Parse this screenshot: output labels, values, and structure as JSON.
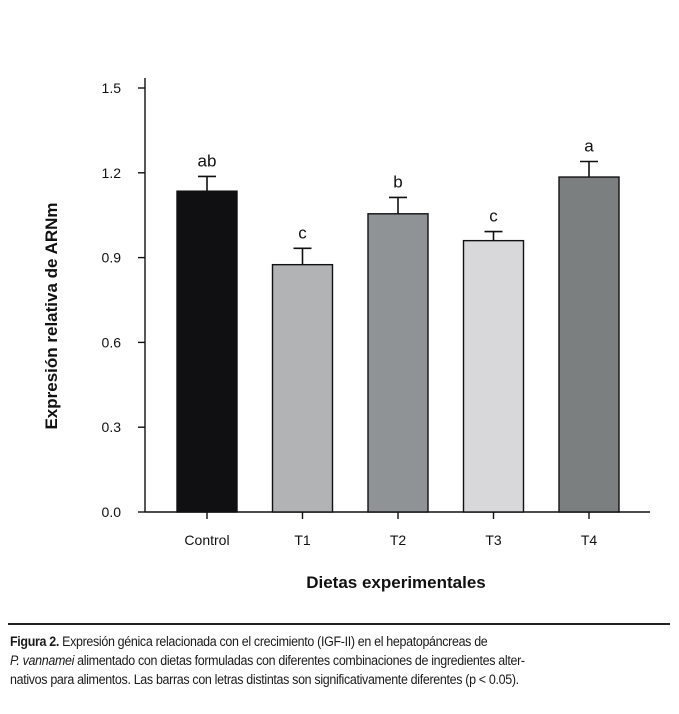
{
  "chart_data": {
    "type": "bar",
    "categories": [
      "Control",
      "T1",
      "T2",
      "T3",
      "T4"
    ],
    "values": [
      1.135,
      0.875,
      1.055,
      0.96,
      1.185
    ],
    "errors": [
      0.052,
      0.058,
      0.058,
      0.032,
      0.055
    ],
    "letters": [
      "ab",
      "c",
      "b",
      "c",
      "a"
    ],
    "colors": [
      "#101012",
      "#b2b3b5",
      "#8f9395",
      "#d8d8da",
      "#7b7f80"
    ],
    "xlabel": "Dietas experimentales",
    "ylabel": "Expresión relativa de ARNm",
    "ylim": [
      0,
      1.5
    ],
    "yticks": [
      "0.0",
      "0.3",
      "0.6",
      "0.9",
      "1.2",
      "1.5"
    ],
    "ytick_values": [
      0,
      0.3,
      0.6,
      0.9,
      1.2,
      1.5
    ]
  },
  "caption": {
    "label": "Figura 2.",
    "line1": " Expresión génica relacionada con el crecimiento (IGF-II) en el hepatopáncreas de",
    "species": "P. vannamei",
    "line2": " alimentado con dietas formuladas con diferentes combinaciones de ingredientes alter-",
    "line3": "nativos para alimentos. Las barras con letras distintas son significativamente diferentes (p < 0.05)."
  }
}
